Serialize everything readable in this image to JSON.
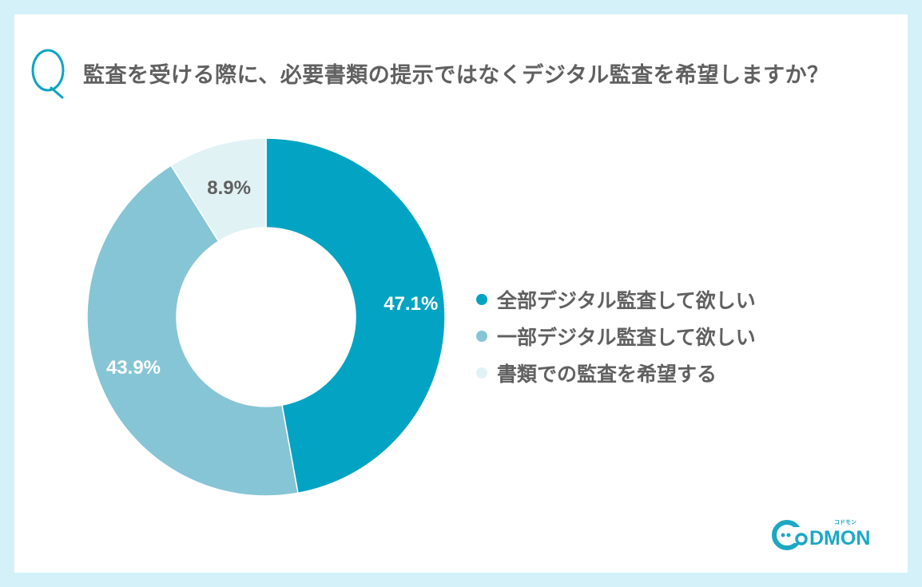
{
  "header": {
    "q_mark": "Q",
    "question": "監査を受ける際に、必要書類の提示ではなくデジタル監査を希望しますか？"
  },
  "colors": {
    "background_border": "#d4f1fa",
    "accent": "#0aa5c2",
    "slice_1": "#03a3c3",
    "slice_2": "#86c5d5",
    "slice_3": "#e1f2f5",
    "text": "#606060"
  },
  "legend": {
    "items": [
      {
        "label": "全部デジタル監査して欲しい",
        "color": "#03a3c3"
      },
      {
        "label": "一部デジタル監査して欲しい",
        "color": "#86c5d5"
      },
      {
        "label": "書類での監査を希望する",
        "color": "#e1f2f5"
      }
    ]
  },
  "slice_labels": [
    "47.1%",
    "43.9%",
    "8.9%"
  ],
  "logo": {
    "text": "CODMON",
    "subtext": "コドモン"
  },
  "chart_data": {
    "type": "pie",
    "variant": "donut",
    "title": "監査を受ける際に、必要書類の提示ではなくデジタル監査を希望しますか？",
    "categories": [
      "全部デジタル監査して欲しい",
      "一部デジタル監査して欲しい",
      "書類での監査を希望する"
    ],
    "values": [
      47.1,
      43.9,
      8.9
    ],
    "unit": "%",
    "colors": [
      "#03a3c3",
      "#86c5d5",
      "#e1f2f5"
    ],
    "start_angle": "12 o'clock, clockwise",
    "legend_position": "right"
  }
}
